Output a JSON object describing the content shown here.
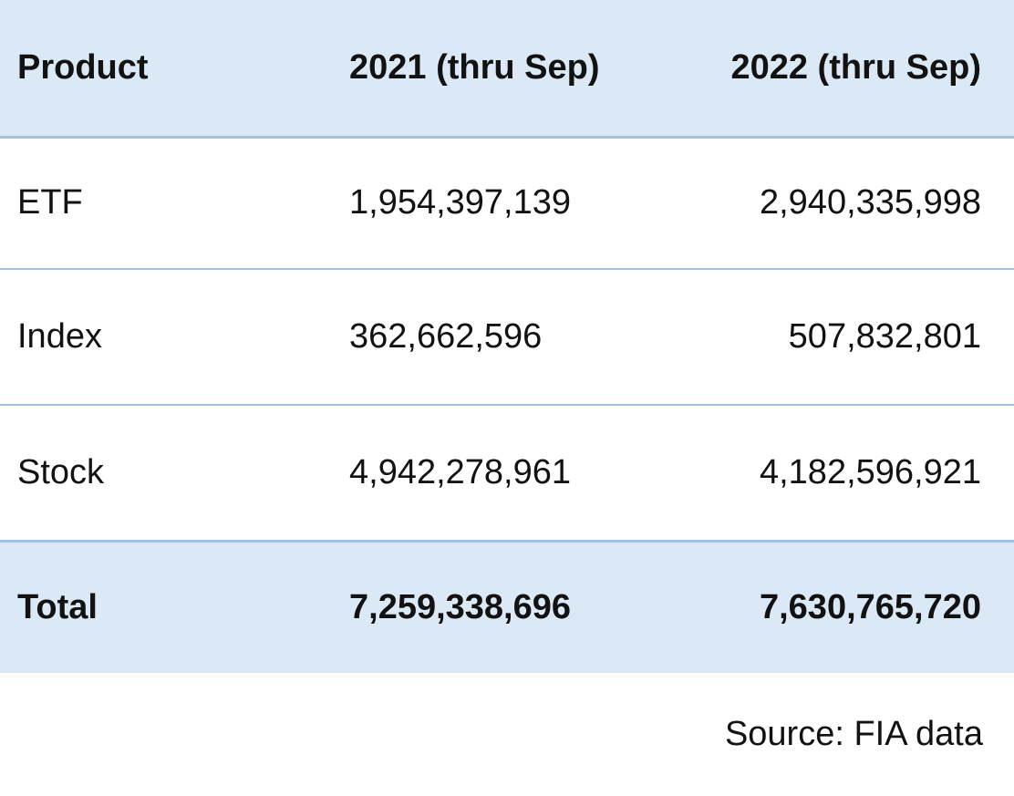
{
  "table": {
    "columns": {
      "product": "Product",
      "y2021": "2021 (thru Sep)",
      "y2022": "2022 (thru Sep)"
    },
    "rows": [
      {
        "product": "ETF",
        "y2021": "1,954,397,139",
        "y2022": "2,940,335,998"
      },
      {
        "product": "Index",
        "y2021": "362,662,596",
        "y2022": "507,832,801"
      },
      {
        "product": "Stock",
        "y2021": "4,942,278,961",
        "y2022": "4,182,596,921"
      }
    ],
    "total": {
      "product": "Total",
      "y2021": "7,259,338,696",
      "y2022": "7,630,765,720"
    }
  },
  "footer": {
    "source": "Source: FIA data"
  },
  "colors": {
    "band_fill": "#dbe8f5",
    "border": "#a3c2e2",
    "text": "#121212"
  },
  "chart_data": {
    "type": "table",
    "title": "",
    "columns": [
      "Product",
      "2021 (thru Sep)",
      "2022 (thru Sep)"
    ],
    "rows": [
      [
        "ETF",
        1954397139,
        2940335998
      ],
      [
        "Index",
        362662596,
        507832801
      ],
      [
        "Stock",
        4942278961,
        4182596921
      ],
      [
        "Total",
        7259338696,
        7630765720
      ]
    ],
    "annotations": [
      "Source: FIA data"
    ]
  }
}
